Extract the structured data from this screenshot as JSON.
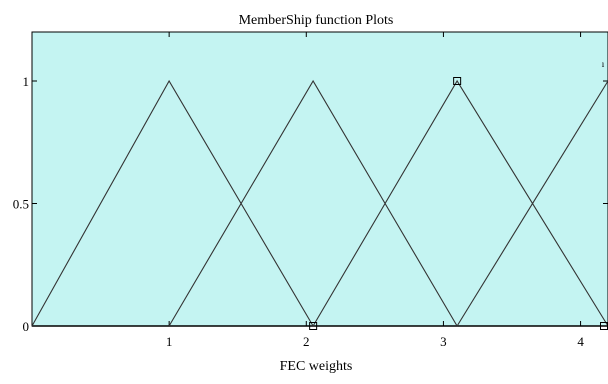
{
  "chart_data": {
    "type": "line",
    "title": "MemberShip function  Plots",
    "xlabel": "FEC weights",
    "ylabel": "",
    "xlim": [
      0,
      4.2
    ],
    "ylim": [
      0,
      1.2
    ],
    "xticks": [
      1,
      2,
      3,
      4
    ],
    "yticks": [
      0,
      0.5,
      1
    ],
    "ytick_labels": [
      "0",
      "0.5",
      "1"
    ],
    "grid": false,
    "legend": "none",
    "background_color": "#c4f4f2",
    "line_color": "#333333",
    "series": [
      {
        "x": [
          0,
          1,
          2.05
        ],
        "y": [
          0,
          1,
          0
        ]
      },
      {
        "x": [
          1,
          2.05,
          3.1
        ],
        "y": [
          0,
          1,
          0
        ]
      },
      {
        "x": [
          2.05,
          3.1,
          4.2
        ],
        "y": [
          0,
          1,
          0
        ]
      },
      {
        "x": [
          3.1,
          4.2
        ],
        "y": [
          0,
          1
        ]
      }
    ],
    "markers": [
      {
        "x": 2.05,
        "y": 0
      },
      {
        "x": 3.1,
        "y": 1
      },
      {
        "x": 4.2,
        "y": 0
      }
    ],
    "corner_mark": "ı"
  }
}
